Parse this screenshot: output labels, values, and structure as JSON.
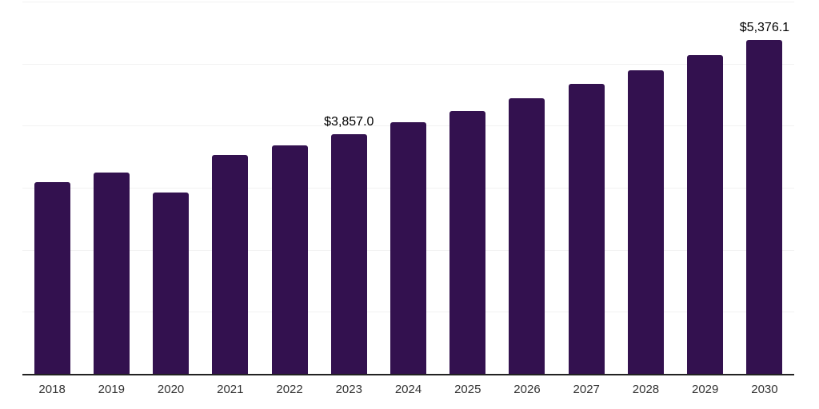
{
  "chart_data": {
    "type": "bar",
    "title": "",
    "xlabel": "",
    "ylabel": "",
    "categories": [
      "2018",
      "2019",
      "2020",
      "2021",
      "2022",
      "2023",
      "2024",
      "2025",
      "2026",
      "2027",
      "2028",
      "2029",
      "2030"
    ],
    "values": [
      3090,
      3240,
      2920,
      3530,
      3680,
      3857.0,
      4060,
      4240,
      4440,
      4670,
      4890,
      5140,
      5376.1
    ],
    "data_labels": [
      "",
      "",
      "",
      "",
      "",
      "$3,857.0",
      "",
      "",
      "",
      "",
      "",
      "",
      "$5,376.1"
    ],
    "ylim": [
      0,
      6000
    ],
    "gridline_step": 1000,
    "grid": "horizontal-light",
    "legend": "none",
    "colors": {
      "bar": "#33114F",
      "gridline": "#f2f2f2",
      "axis_line": "#222222",
      "x_tick_label": "#333333",
      "data_label": "#000000"
    }
  }
}
